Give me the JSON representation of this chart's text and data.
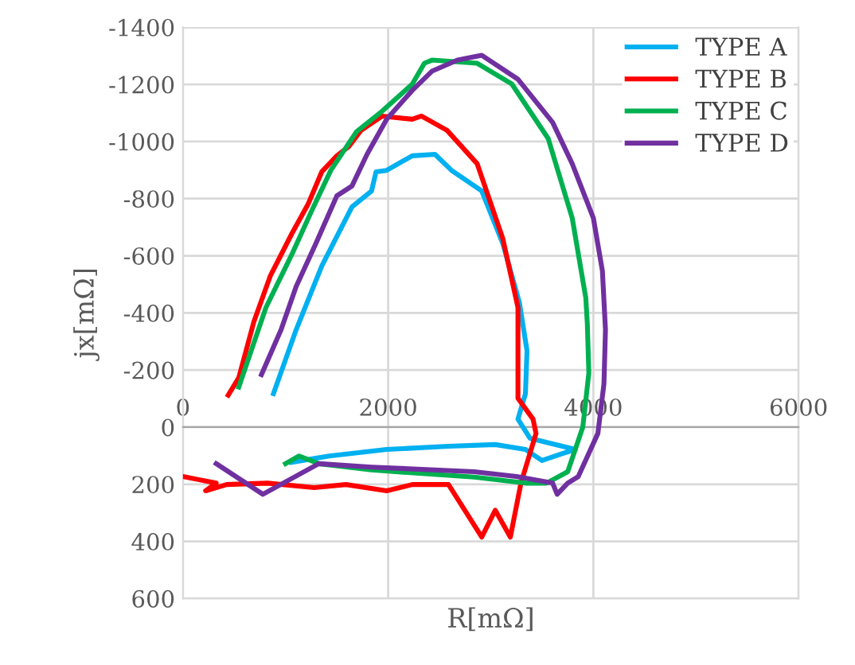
{
  "chart_data": {
    "type": "line",
    "xlabel": "R[mΩ]",
    "ylabel": "jx[mΩ]",
    "xlim": [
      0,
      6000
    ],
    "xticks": [
      0,
      2000,
      4000,
      6000
    ],
    "ylim": [
      600,
      -1400
    ],
    "yticks": [
      -1400,
      -1200,
      -1000,
      -800,
      -600,
      -400,
      -200,
      0,
      200,
      400,
      600
    ],
    "grid": true,
    "legend": "top right",
    "marker": "none",
    "line_style": "solid",
    "series": [
      {
        "name": "TYPE A",
        "color": "#00b0f0",
        "x": [
          1059,
          1426,
          1985,
          2588,
          3044,
          3338,
          3500,
          3676,
          3824,
          3382,
          3265,
          3338,
          3353,
          3279,
          3118,
          2912,
          2618,
          2456,
          2235,
          1985,
          1882,
          1838,
          1647,
          1353,
          1103,
          882
        ],
        "values": [
          123,
          101,
          78,
          67,
          61,
          78,
          117,
          95,
          78,
          39,
          -28,
          -117,
          -268,
          -436,
          -642,
          -827,
          -899,
          -955,
          -950,
          -899,
          -894,
          -827,
          -771,
          -564,
          -341,
          -117
        ]
      },
      {
        "name": "TYPE B",
        "color": "#ff0000",
        "x": [
          0,
          324,
          221,
          426,
          824,
          1279,
          1588,
          1985,
          2235,
          2588,
          2912,
          3044,
          3191,
          3294,
          3441,
          3412,
          3265,
          3265,
          3118,
          2868,
          2574,
          2324,
          2235,
          1941,
          1735,
          1618,
          1500,
          1353,
          1221,
          1059,
          853,
          691,
          544,
          441
        ],
        "values": [
          173,
          196,
          223,
          201,
          196,
          212,
          201,
          223,
          201,
          201,
          385,
          291,
          385,
          196,
          22,
          -28,
          -101,
          -419,
          -659,
          -922,
          -1039,
          -1089,
          -1078,
          -1089,
          -1039,
          -983,
          -950,
          -894,
          -782,
          -676,
          -531,
          -369,
          -173,
          -112
        ]
      },
      {
        "name": "TYPE C",
        "color": "#00b050",
        "x": [
          1000,
          1132,
          1324,
          1838,
          2838,
          3338,
          3544,
          3750,
          3897,
          3956,
          3941,
          3926,
          3794,
          3559,
          3206,
          2868,
          2426,
          2353,
          2235,
          1941,
          1691,
          1441,
          1250,
          1059,
          809,
          544
        ],
        "values": [
          128,
          101,
          128,
          150,
          175,
          196,
          196,
          156,
          0,
          -190,
          -363,
          -453,
          -732,
          -1011,
          -1201,
          -1274,
          -1285,
          -1274,
          -1201,
          -1106,
          -1034,
          -899,
          -754,
          -603,
          -419,
          -140
        ]
      },
      {
        "name": "TYPE D",
        "color": "#7030a0",
        "x": [
          324,
          779,
          1324,
          1838,
          2838,
          3250,
          3603,
          3647,
          3750,
          3853,
          4044,
          4103,
          4118,
          4088,
          4000,
          3794,
          3603,
          3265,
          2912,
          2676,
          2426,
          2235,
          1985,
          1794,
          1647,
          1500,
          1294,
          1103,
          956,
          765
        ],
        "values": [
          128,
          235,
          128,
          140,
          156,
          173,
          196,
          235,
          196,
          173,
          22,
          -151,
          -341,
          -547,
          -732,
          -922,
          -1067,
          -1218,
          -1302,
          -1285,
          -1246,
          -1179,
          -1078,
          -955,
          -844,
          -810,
          -642,
          -492,
          -341,
          -184
        ]
      }
    ]
  }
}
